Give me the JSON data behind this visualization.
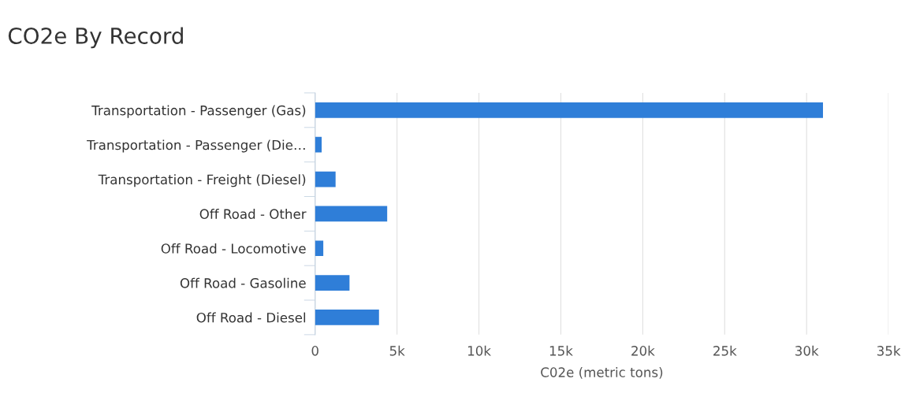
{
  "chart_data": {
    "type": "bar",
    "orientation": "horizontal",
    "title": "CO2e By Record",
    "xlabel": "C02e (metric tons)",
    "categories": [
      "Transportation - Passenger (Gas)",
      "Transportation - Passenger (Die…",
      "Transportation - Freight (Diesel)",
      "Off Road - Other",
      "Off Road - Locomotive",
      "Off Road - Gasoline",
      "Off Road - Diesel"
    ],
    "values": [
      31000,
      400,
      1250,
      4400,
      500,
      2100,
      3900
    ],
    "color": "#2f7ed8",
    "xlim": [
      0,
      35000
    ],
    "xticks": [
      {
        "value": 0,
        "label": "0"
      },
      {
        "value": 5000,
        "label": "5k"
      },
      {
        "value": 10000,
        "label": "10k"
      },
      {
        "value": 15000,
        "label": "15k"
      },
      {
        "value": 20000,
        "label": "20k"
      },
      {
        "value": 25000,
        "label": "25k"
      },
      {
        "value": 30000,
        "label": "30k"
      },
      {
        "value": 35000,
        "label": "35k"
      }
    ],
    "grid": "x",
    "legend": false
  }
}
